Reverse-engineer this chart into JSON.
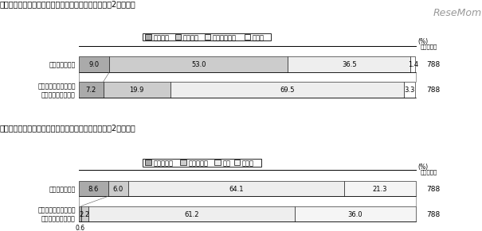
{
  "title1": "【チェーンメールなどの迷惑メールの受信状況＜中学2年生＞】",
  "title2": "【チェーンメールなどの迷惑メールの対応状況＜中学2年生＞】",
  "watermark": "ReseMom",
  "chart1": {
    "legend_labels": [
      "よくある",
      "時々ある",
      "まったくない",
      "無回答"
    ],
    "colors": [
      "#aaaaaa",
      "#cccccc",
      "#eeeeee",
      "#ffffff"
    ],
    "rows": [
      {
        "label": "チェーンメール",
        "values": [
          9.0,
          53.0,
          36.5,
          1.4
        ],
        "sample": "788"
      },
      {
        "label": "出会い系サイトなどの\n広告（迷惑）メール",
        "values": [
          7.2,
          19.9,
          69.5,
          3.3
        ],
        "sample": "788"
      }
    ]
  },
  "chart2": {
    "legend_labels": [
      "返信・転送",
      "大人に相談",
      "無視",
      "無回答"
    ],
    "colors": [
      "#aaaaaa",
      "#cccccc",
      "#eeeeee",
      "#f5f5f5"
    ],
    "rows": [
      {
        "label": "チェーンメール",
        "values": [
          8.6,
          6.0,
          64.1,
          21.3
        ],
        "sample": "788"
      },
      {
        "label": "出会い系サイトなどの\n広告（迷惑）メール",
        "values": [
          0.6,
          2.2,
          61.2,
          36.0
        ],
        "sample": "788"
      }
    ]
  }
}
